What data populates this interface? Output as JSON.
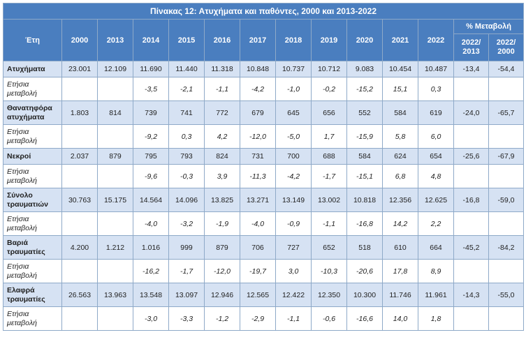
{
  "title": "Πίνακας 12: Ατυχήματα και παθόντες, 2000 και 2013-2022",
  "header": {
    "col_label": "Έτη",
    "years": [
      "2000",
      "2013",
      "2014",
      "2015",
      "2016",
      "2017",
      "2018",
      "2019",
      "2020",
      "2021",
      "2022"
    ],
    "change_group": "% Μεταβολή",
    "change_cols": [
      "2022/ 2013",
      "2022/ 2000"
    ]
  },
  "rows": [
    {
      "label": "Ατυχήματα",
      "values": [
        "23.001",
        "12.109",
        "11.690",
        "11.440",
        "11.318",
        "10.848",
        "10.737",
        "10.712",
        "9.083",
        "10.454",
        "10.487"
      ],
      "changes": [
        "-13,4",
        "-54,4"
      ],
      "annual_label": "Ετήσια μεταβολή",
      "annual": [
        "",
        "",
        "-3,5",
        "-2,1",
        "-1,1",
        "-4,2",
        "-1,0",
        "-0,2",
        "-15,2",
        "15,1",
        "0,3"
      ]
    },
    {
      "label": "Θανατηφόρα ατυχήματα",
      "values": [
        "1.803",
        "814",
        "739",
        "741",
        "772",
        "679",
        "645",
        "656",
        "552",
        "584",
        "619"
      ],
      "changes": [
        "-24,0",
        "-65,7"
      ],
      "annual_label": "Ετήσια μεταβολή",
      "annual": [
        "",
        "",
        "-9,2",
        "0,3",
        "4,2",
        "-12,0",
        "-5,0",
        "1,7",
        "-15,9",
        "5,8",
        "6,0"
      ]
    },
    {
      "label": "Νεκροί",
      "values": [
        "2.037",
        "879",
        "795",
        "793",
        "824",
        "731",
        "700",
        "688",
        "584",
        "624",
        "654"
      ],
      "changes": [
        "-25,6",
        "-67,9"
      ],
      "annual_label": "Ετήσια μεταβολή",
      "annual": [
        "",
        "",
        "-9,6",
        "-0,3",
        "3,9",
        "-11,3",
        "-4,2",
        "-1,7",
        "-15,1",
        "6,8",
        "4,8"
      ]
    },
    {
      "label": "Σύνολο τραυματιών",
      "values": [
        "30.763",
        "15.175",
        "14.564",
        "14.096",
        "13.825",
        "13.271",
        "13.149",
        "13.002",
        "10.818",
        "12.356",
        "12.625"
      ],
      "changes": [
        "-16,8",
        "-59,0"
      ],
      "annual_label": "Ετήσια μεταβολή",
      "annual": [
        "",
        "",
        "-4,0",
        "-3,2",
        "-1,9",
        "-4,0",
        "-0,9",
        "-1,1",
        "-16,8",
        "14,2",
        "2,2"
      ]
    },
    {
      "label": "Βαριά τραυματίες",
      "values": [
        "4.200",
        "1.212",
        "1.016",
        "999",
        "879",
        "706",
        "727",
        "652",
        "518",
        "610",
        "664"
      ],
      "changes": [
        "-45,2",
        "-84,2"
      ],
      "annual_label": "Ετήσια μεταβολή",
      "annual": [
        "",
        "",
        "-16,2",
        "-1,7",
        "-12,0",
        "-19,7",
        "3,0",
        "-10,3",
        "-20,6",
        "17,8",
        "8,9"
      ]
    },
    {
      "label": "Ελαφρά τραυματίες",
      "values": [
        "26.563",
        "13.963",
        "13.548",
        "13.097",
        "12.946",
        "12.565",
        "12.422",
        "12.350",
        "10.300",
        "11.746",
        "11.961"
      ],
      "changes": [
        "-14,3",
        "-55,0"
      ],
      "annual_label": "Ετήσια μεταβολή",
      "annual": [
        "",
        "",
        "-3,0",
        "-3,3",
        "-1,2",
        "-2,9",
        "-1,1",
        "-0,6",
        "-16,6",
        "14,0",
        "1,8"
      ]
    }
  ]
}
